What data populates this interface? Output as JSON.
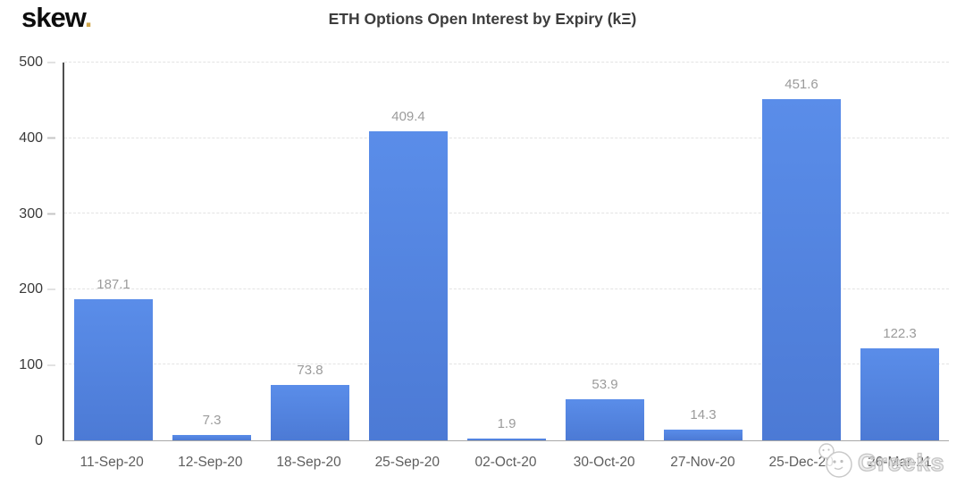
{
  "header": {
    "logo_text": "skew",
    "logo_dot": ".",
    "title": "ETH Options Open Interest by Expiry (kΞ)"
  },
  "watermark": {
    "text": "Greeks",
    "emoji": "smiley-faces-icon"
  },
  "colors": {
    "bar_top": "#5a8de9",
    "bar_bottom": "#4c7ad5",
    "value_label": "#9b9b9b",
    "gridline": "#e3e3e3",
    "y_axis_line": "#4f4f4f",
    "baseline": "#a8a8a8",
    "logo_dot_gold": "#cfa64b"
  },
  "chart_data": {
    "type": "bar",
    "title": "ETH Options Open Interest by Expiry (kΞ)",
    "categories": [
      "11-Sep-20",
      "12-Sep-20",
      "18-Sep-20",
      "25-Sep-20",
      "02-Oct-20",
      "30-Oct-20",
      "27-Nov-20",
      "25-Dec-20",
      "26-Mar-21"
    ],
    "values": [
      187.1,
      7.3,
      73.8,
      409.4,
      1.9,
      53.9,
      14.3,
      451.6,
      122.3
    ],
    "xlabel": "",
    "ylabel": "",
    "ylim": [
      0,
      500
    ],
    "yticks": [
      0,
      100,
      200,
      300,
      400,
      500
    ],
    "grid": "horizontal-dashed",
    "legend": "none",
    "bar_color": "#4d80e0",
    "value_labels_shown": true
  }
}
